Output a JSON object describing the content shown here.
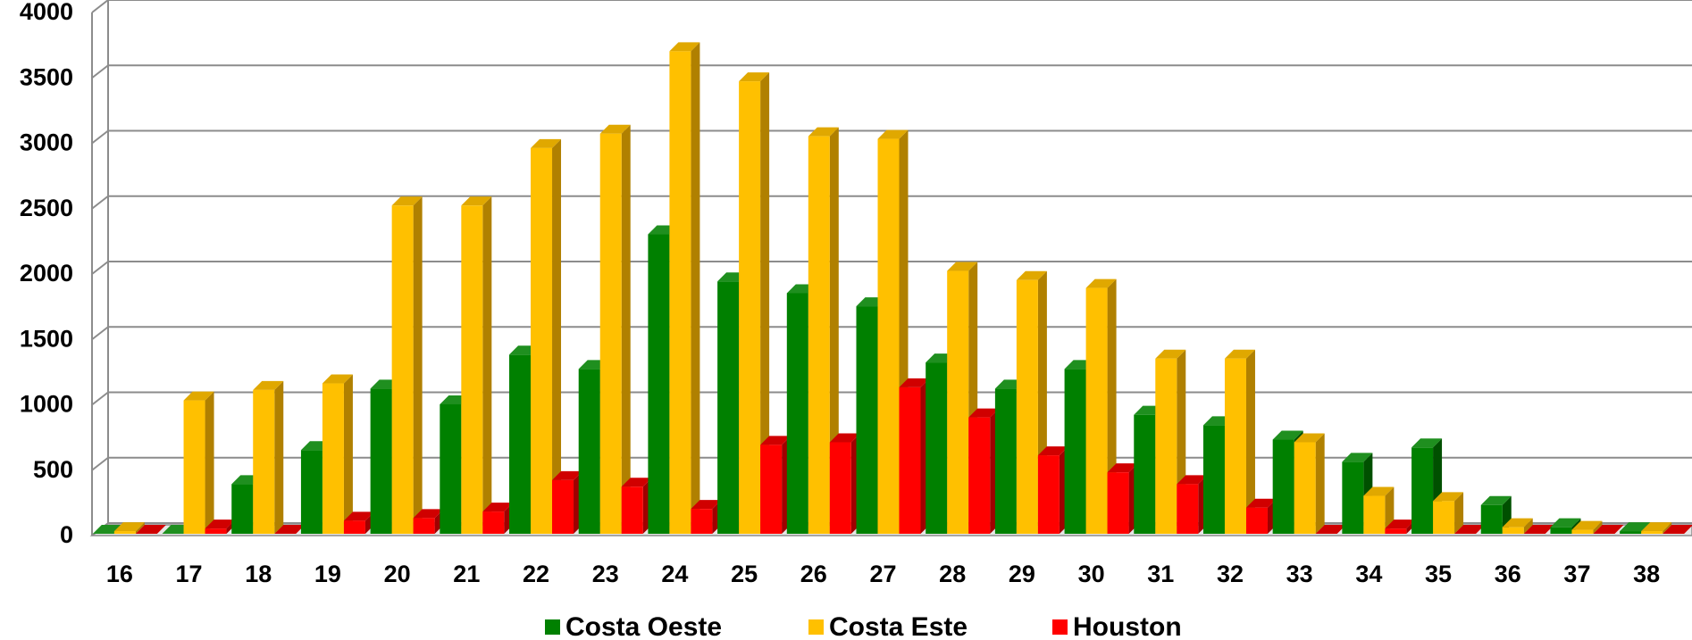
{
  "chart_data": {
    "type": "bar",
    "title": "",
    "xlabel": "",
    "ylabel": "",
    "ylim": [
      0,
      4000
    ],
    "ytick_step": 500,
    "grid": true,
    "legend_position": "bottom",
    "categories": [
      "16",
      "17",
      "18",
      "19",
      "20",
      "21",
      "22",
      "23",
      "24",
      "25",
      "26",
      "27",
      "28",
      "29",
      "30",
      "31",
      "32",
      "33",
      "34",
      "35",
      "36",
      "37",
      "38"
    ],
    "series": [
      {
        "name": "Costa Oeste",
        "color": "#008000",
        "side_color": "#005000",
        "top_color": "#1f8f1f",
        "values": [
          0,
          0,
          380,
          640,
          1110,
          990,
          1370,
          1260,
          2290,
          1930,
          1840,
          1740,
          1310,
          1110,
          1260,
          910,
          830,
          720,
          550,
          660,
          220,
          50,
          20
        ]
      },
      {
        "name": "Costa Este",
        "color": "#FFC000",
        "side_color": "#B08000",
        "top_color": "#E0A800",
        "values": [
          20,
          1020,
          1100,
          1150,
          2510,
          2510,
          2950,
          3060,
          3690,
          3460,
          3040,
          3020,
          2010,
          1940,
          1880,
          1340,
          1340,
          700,
          290,
          250,
          50,
          30,
          20
        ]
      },
      {
        "name": "Houston",
        "color": "#FF0000",
        "side_color": "#A00000",
        "top_color": "#D00000",
        "values": [
          0,
          40,
          0,
          100,
          120,
          170,
          410,
          360,
          190,
          680,
          700,
          1120,
          890,
          600,
          470,
          380,
          200,
          0,
          40,
          0,
          0,
          0,
          0
        ]
      }
    ]
  }
}
